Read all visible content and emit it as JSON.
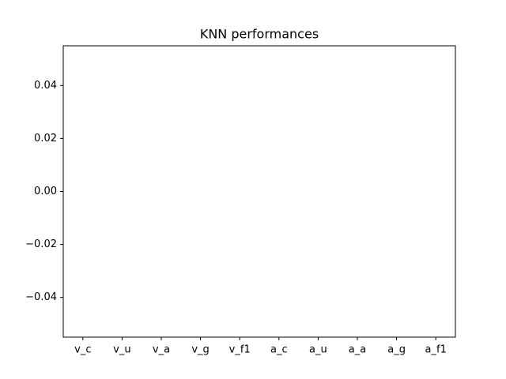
{
  "chart_data": {
    "type": "bar",
    "title": "KNN performances",
    "categories": [
      "v_c",
      "v_u",
      "v_a",
      "v_g",
      "v_f1",
      "a_c",
      "a_u",
      "a_a",
      "a_g",
      "a_f1"
    ],
    "values": [
      0,
      0,
      0,
      0,
      0,
      0,
      0,
      0,
      0,
      0
    ],
    "color": "#1f77b4",
    "ylim": [
      -0.055,
      0.055
    ],
    "yticks": [
      {
        "value": -0.04,
        "label": "−0.04"
      },
      {
        "value": -0.02,
        "label": "−0.02"
      },
      {
        "value": 0,
        "label": "0.00"
      },
      {
        "value": 0.02,
        "label": "0.02"
      },
      {
        "value": 0.04,
        "label": "0.04"
      }
    ],
    "grid": false
  }
}
